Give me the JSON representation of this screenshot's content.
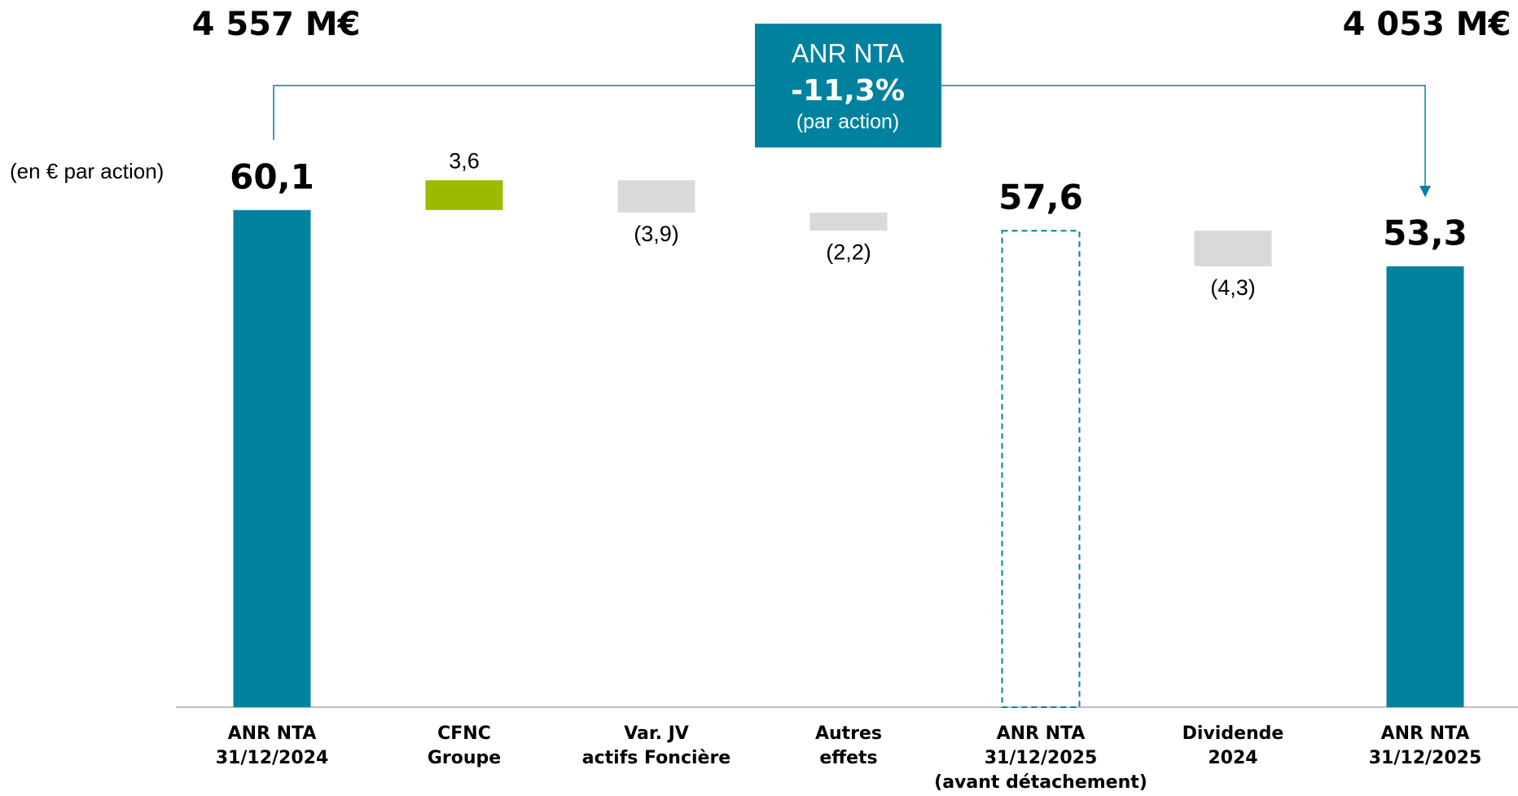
{
  "chart_data": {
    "type": "waterfall",
    "unit_label": "(en € par action)",
    "annotations": {
      "left_total": "4 557 M€",
      "right_total": "4 053 M€",
      "box_title": "ANR NTA",
      "box_change": "-11,3%",
      "box_note": "(par action)"
    },
    "categories": [
      [
        "ANR NTA",
        "31/12/2024"
      ],
      [
        "CFNC",
        "Groupe"
      ],
      [
        "Var. JV",
        "actifs Foncière"
      ],
      [
        "Autres",
        "effets"
      ],
      [
        "ANR NTA",
        "31/12/2025",
        "(avant détachement)"
      ],
      [
        "Dividende",
        "2024"
      ],
      [
        "ANR NTA",
        "31/12/2025"
      ]
    ],
    "values": [
      60.1,
      3.6,
      -3.9,
      -2.2,
      57.6,
      -4.3,
      53.3
    ],
    "value_labels": [
      "60,1",
      "3,6",
      "(3,9)",
      "(2,2)",
      "57,6",
      "(4,3)",
      "53,3"
    ],
    "measure": [
      "total",
      "relative",
      "relative",
      "relative",
      "total",
      "relative",
      "total"
    ],
    "dashed": [
      false,
      false,
      false,
      false,
      true,
      false,
      false
    ],
    "colors": {
      "total": "#00829f",
      "increase": "#9bbb00",
      "decrease": "#d9d9d9"
    },
    "ylim": [
      0,
      85
    ]
  }
}
